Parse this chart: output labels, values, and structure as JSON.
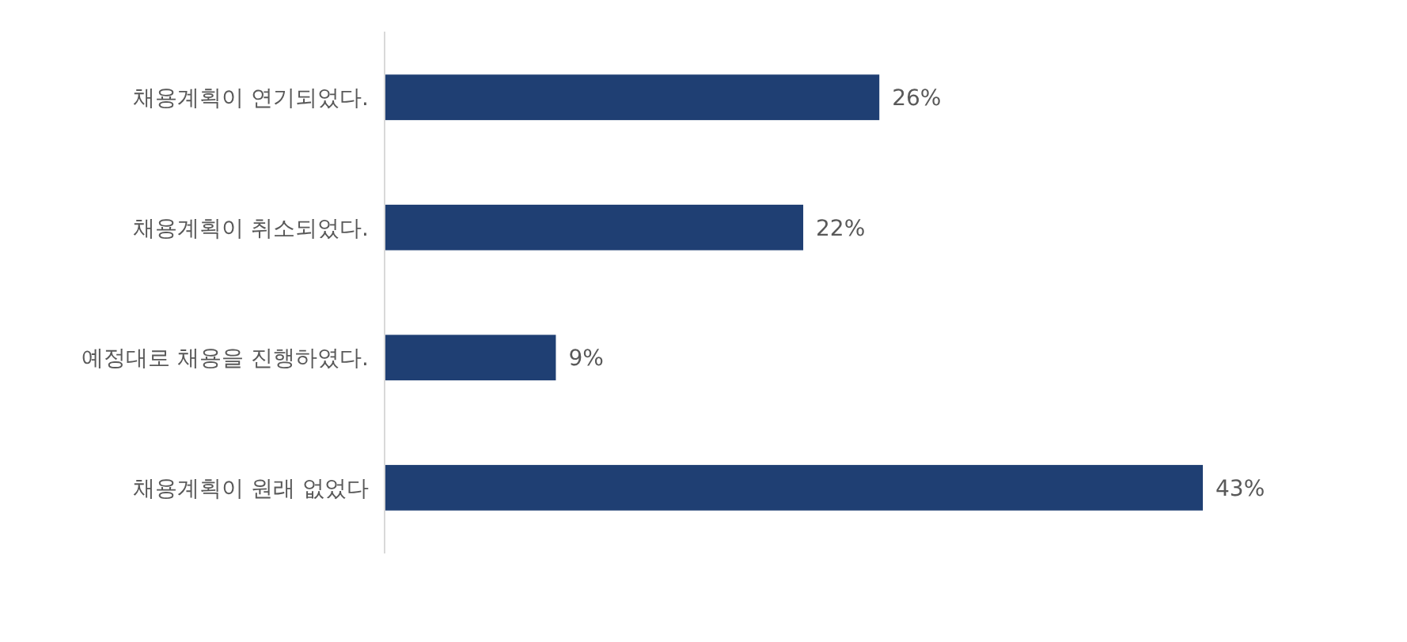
{
  "chart_data": {
    "type": "bar",
    "orientation": "horizontal",
    "categories": [
      "채용계획이 연기되었다.",
      "채용계획이 취소되었다.",
      "예정대로 채용을 진행하였다.",
      "채용계획이 원래 없었다"
    ],
    "values": [
      26,
      22,
      9,
      43
    ],
    "color": "#1f3f73",
    "data_labels": true,
    "value_labels": [
      "26%",
      "22%",
      "9%",
      "43%"
    ]
  }
}
